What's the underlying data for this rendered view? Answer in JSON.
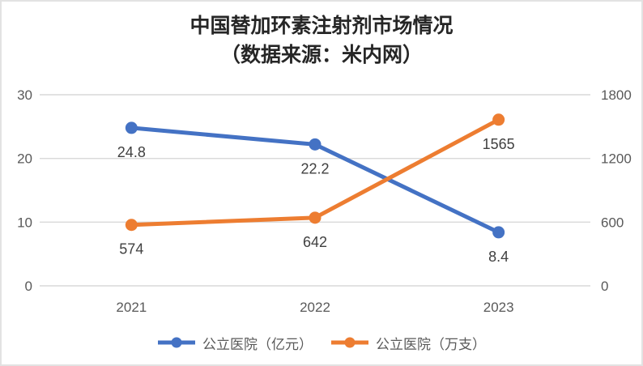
{
  "title": {
    "line1": "中国替加环素注射剂市场情况",
    "line2": "（数据来源：米内网）"
  },
  "chart_data": {
    "type": "line",
    "categories": [
      "2021",
      "2022",
      "2023"
    ],
    "series": [
      {
        "name": "公立医院（亿元）",
        "axis": "left",
        "color": "#4472C4",
        "values": [
          24.8,
          22.2,
          8.4
        ],
        "labels": [
          "24.8",
          "22.2",
          "8.4"
        ]
      },
      {
        "name": "公立医院（万支）",
        "axis": "right",
        "color": "#ED7D31",
        "values": [
          574,
          642,
          1565
        ],
        "labels": [
          "574",
          "642",
          "1565"
        ]
      }
    ],
    "left_axis": {
      "ticks": [
        0,
        10,
        20,
        30
      ],
      "range": [
        0,
        30
      ]
    },
    "right_axis": {
      "ticks": [
        0,
        600,
        1200,
        1800
      ],
      "range": [
        0,
        1800
      ]
    },
    "grid": true,
    "legend_position": "bottom",
    "data_label_position": "below",
    "colors": {
      "grid": "#d9d9d9",
      "tick_label": "#595959",
      "data_label": "#404040",
      "title": "#262626"
    }
  }
}
